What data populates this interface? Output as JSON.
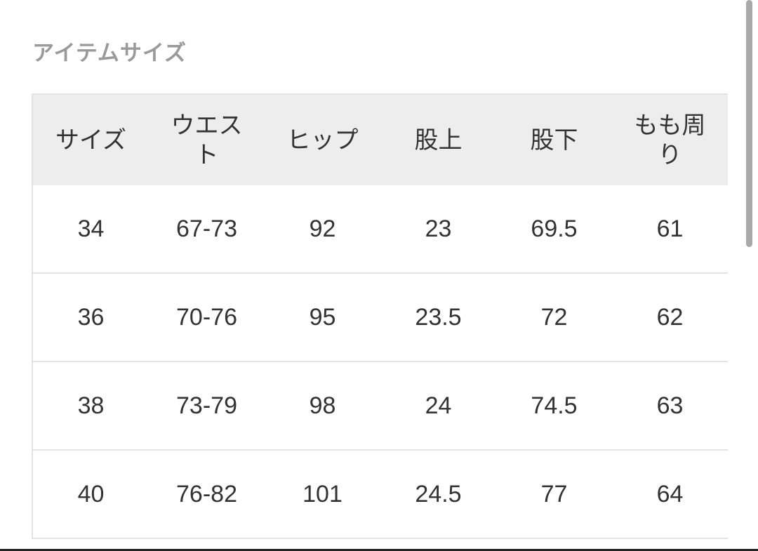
{
  "title": "アイテムサイズ",
  "table": {
    "headers": [
      "サイズ",
      "ウエスト",
      "ヒップ",
      "股上",
      "股下",
      "もも周り"
    ],
    "rows": [
      [
        "34",
        "67-73",
        "92",
        "23",
        "69.5",
        "61"
      ],
      [
        "36",
        "70-76",
        "95",
        "23.5",
        "72",
        "62"
      ],
      [
        "38",
        "73-79",
        "98",
        "24",
        "74.5",
        "63"
      ],
      [
        "40",
        "76-82",
        "101",
        "24.5",
        "77",
        "64"
      ]
    ]
  }
}
